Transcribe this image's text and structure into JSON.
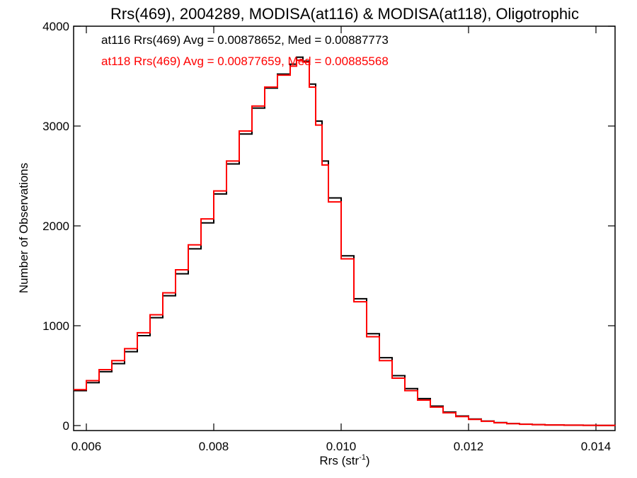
{
  "chart_data": {
    "type": "line",
    "step": true,
    "title": "Rrs(469), 2004289, MODISA(at116) & MODISA(at118), Oligotrophic",
    "xlabel": "Rrs (str",
    "xlabel_sup": "-1",
    "xlabel_tail": ")",
    "ylabel": "Number of Observations",
    "xlim": [
      0.0058,
      0.0143
    ],
    "ylim": [
      -50,
      4000
    ],
    "xticks": [
      0.006,
      0.008,
      0.01,
      0.012,
      0.014
    ],
    "xtick_labels": [
      "0.006",
      "0.008",
      "0.010",
      "0.012",
      "0.014"
    ],
    "yticks": [
      0,
      1000,
      2000,
      3000,
      4000
    ],
    "ytick_labels": [
      "0",
      "1000",
      "2000",
      "3000",
      "4000"
    ],
    "grid": false,
    "annotations": [
      {
        "text": "at116 Rrs(469) Avg = 0.00878652, Med = 0.00887773",
        "color": "#000000"
      },
      {
        "text": "at118 Rrs(469) Avg = 0.00877659, Med = 0.00885568",
        "color": "#ff0000"
      }
    ],
    "series": [
      {
        "color": "#000000",
        "x": [
          0.0058,
          0.006,
          0.0062,
          0.0064,
          0.0066,
          0.0068,
          0.007,
          0.0072,
          0.0074,
          0.0076,
          0.0078,
          0.008,
          0.0082,
          0.0084,
          0.0086,
          0.0088,
          0.009,
          0.0092,
          0.0093,
          0.0094,
          0.0095,
          0.0096,
          0.0097,
          0.0098,
          0.01,
          0.0102,
          0.0104,
          0.0106,
          0.0108,
          0.011,
          0.0112,
          0.0114,
          0.0116,
          0.0118,
          0.012,
          0.0122,
          0.0124,
          0.0126,
          0.0128,
          0.013,
          0.0132,
          0.0135,
          0.0138,
          0.014,
          0.0143
        ],
        "y": [
          350,
          430,
          540,
          620,
          740,
          900,
          1080,
          1300,
          1520,
          1770,
          2030,
          2320,
          2620,
          2920,
          3180,
          3380,
          3520,
          3620,
          3690,
          3650,
          3420,
          3050,
          2650,
          2280,
          1700,
          1270,
          920,
          680,
          500,
          370,
          270,
          195,
          135,
          95,
          65,
          45,
          30,
          20,
          14,
          9,
          6,
          4,
          2,
          1,
          0
        ]
      },
      {
        "color": "#ff0000",
        "x": [
          0.0058,
          0.006,
          0.0062,
          0.0064,
          0.0066,
          0.0068,
          0.007,
          0.0072,
          0.0074,
          0.0076,
          0.0078,
          0.008,
          0.0082,
          0.0084,
          0.0086,
          0.0088,
          0.009,
          0.0092,
          0.0093,
          0.0094,
          0.0095,
          0.0096,
          0.0097,
          0.0098,
          0.01,
          0.0102,
          0.0104,
          0.0106,
          0.0108,
          0.011,
          0.0112,
          0.0114,
          0.0116,
          0.0118,
          0.012,
          0.0122,
          0.0124,
          0.0126,
          0.0128,
          0.013,
          0.0132,
          0.0135,
          0.0138,
          0.014,
          0.0143
        ],
        "y": [
          360,
          450,
          560,
          650,
          770,
          930,
          1110,
          1330,
          1560,
          1810,
          2070,
          2350,
          2650,
          2950,
          3200,
          3390,
          3510,
          3600,
          3660,
          3640,
          3390,
          3010,
          2610,
          2240,
          1670,
          1240,
          890,
          650,
          475,
          350,
          255,
          185,
          128,
          90,
          62,
          43,
          28,
          19,
          13,
          9,
          6,
          4,
          2,
          1,
          0
        ]
      }
    ]
  }
}
